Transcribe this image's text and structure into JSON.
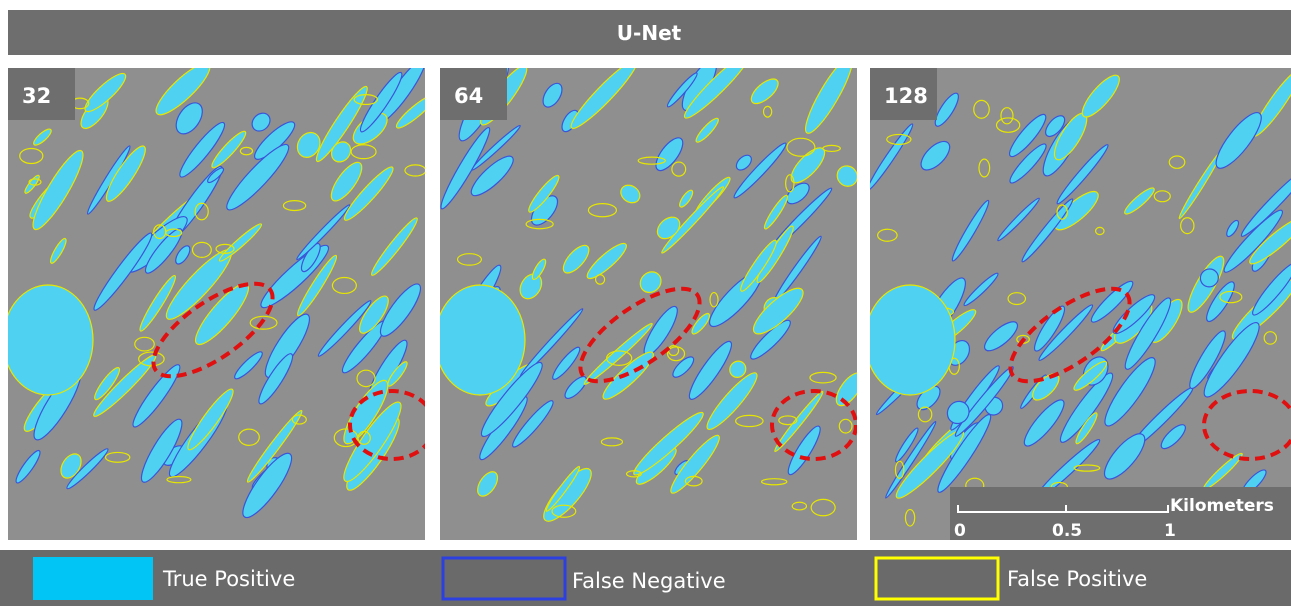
{
  "header": {
    "title": "U-Net"
  },
  "panels": [
    {
      "label": "32"
    },
    {
      "label": "64"
    },
    {
      "label": "128"
    }
  ],
  "scale_bar": {
    "unit": "Kilometers",
    "ticks": [
      "0",
      "0.5",
      "1"
    ]
  },
  "legend": [
    {
      "label": "True Positive"
    },
    {
      "label": "False Negative"
    },
    {
      "label": "False Positive"
    }
  ]
}
